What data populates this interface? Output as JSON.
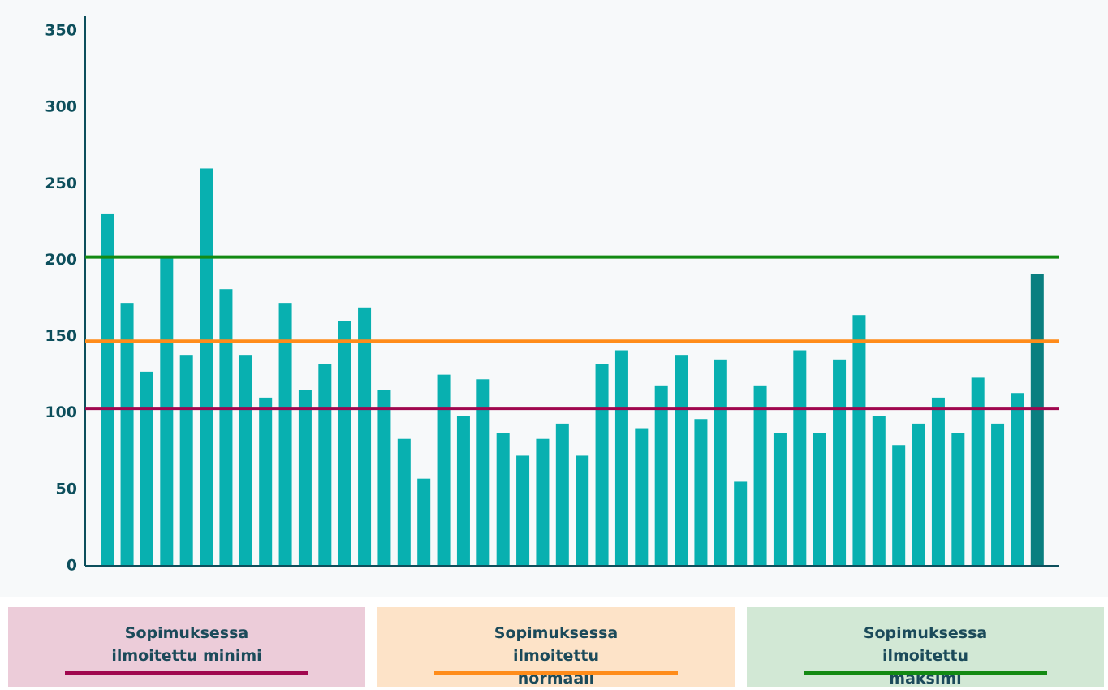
{
  "chart_data": {
    "type": "bar",
    "values": [
      230,
      172,
      127,
      202,
      138,
      260,
      181,
      138,
      110,
      172,
      115,
      132,
      160,
      169,
      115,
      83,
      57,
      125,
      98,
      122,
      87,
      72,
      83,
      93,
      72,
      132,
      141,
      90,
      118,
      138,
      96,
      135,
      55,
      118,
      87,
      141,
      87,
      135,
      164,
      98,
      79,
      93,
      110,
      87,
      123,
      93,
      113,
      191
    ],
    "colors": [
      "#08b0b0",
      "#08b0b0",
      "#08b0b0",
      "#08b0b0",
      "#08b0b0",
      "#08b0b0",
      "#08b0b0",
      "#08b0b0",
      "#08b0b0",
      "#08b0b0",
      "#08b0b0",
      "#08b0b0",
      "#08b0b0",
      "#08b0b0",
      "#08b0b0",
      "#08b0b0",
      "#08b0b0",
      "#08b0b0",
      "#08b0b0",
      "#08b0b0",
      "#08b0b0",
      "#08b0b0",
      "#08b0b0",
      "#08b0b0",
      "#08b0b0",
      "#08b0b0",
      "#08b0b0",
      "#08b0b0",
      "#08b0b0",
      "#08b0b0",
      "#08b0b0",
      "#08b0b0",
      "#08b0b0",
      "#08b0b0",
      "#08b0b0",
      "#08b0b0",
      "#08b0b0",
      "#08b0b0",
      "#08b0b0",
      "#08b0b0",
      "#08b0b0",
      "#08b0b0",
      "#08b0b0",
      "#08b0b0",
      "#08b0b0",
      "#08b0b0",
      "#08b0b0",
      "#0a7f80"
    ],
    "ylim": [
      0,
      350
    ],
    "yticks": [
      0,
      50,
      100,
      150,
      200,
      250,
      300,
      350
    ],
    "reference_lines": [
      {
        "name": "Sopimuksessa ilmoitettu minimi",
        "value": 103,
        "color": "#a0074e",
        "background": "#ecccd9"
      },
      {
        "name": "Sopimuksessa ilmoitettu normaali",
        "value": 147,
        "color": "#ff8c1a",
        "background": "#fde3c8"
      },
      {
        "name": "Sopimuksessa ilmoitettu maksimi",
        "value": 202,
        "color": "#138a13",
        "background": "#d2e8d5"
      }
    ]
  }
}
